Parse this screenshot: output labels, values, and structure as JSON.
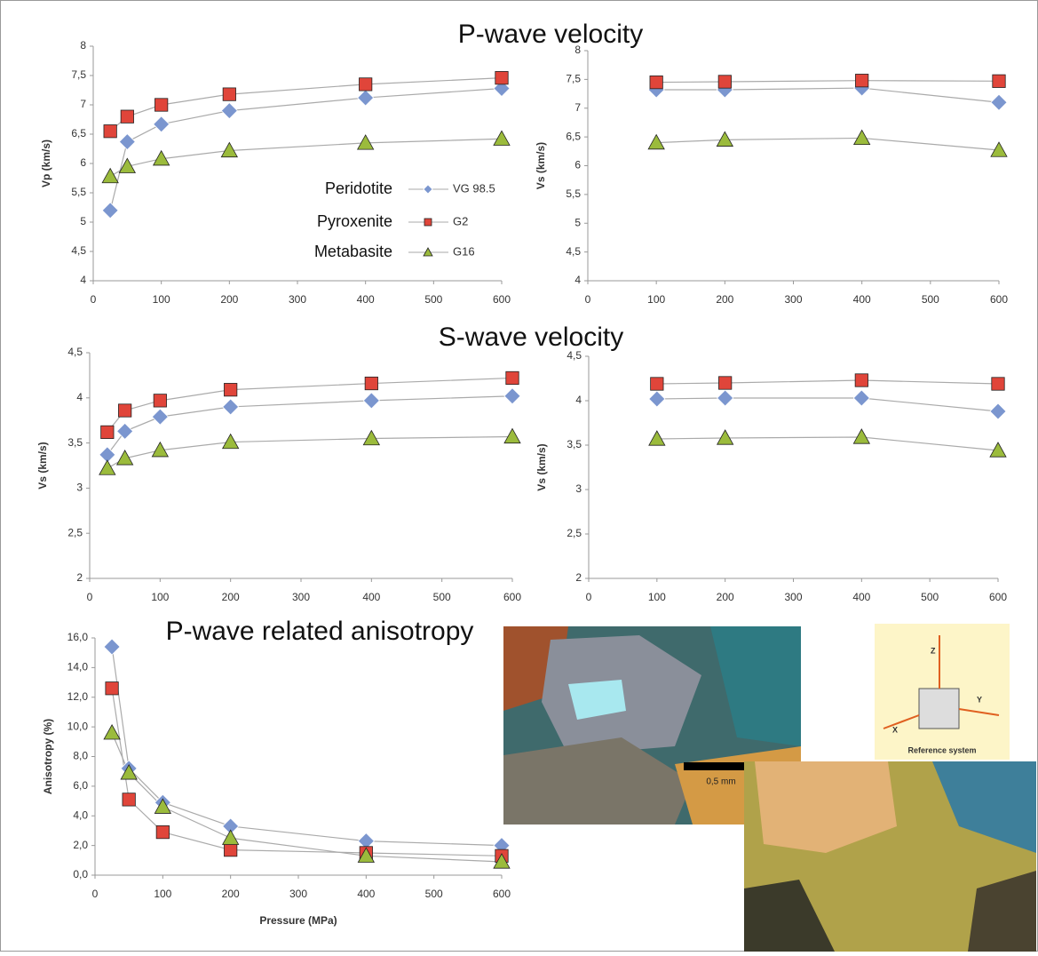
{
  "chart_data": [
    {
      "type": "line",
      "title": "P-wave velocity",
      "ylabel": "Vp (km/s)",
      "x": [
        25,
        50,
        100,
        200,
        400,
        600
      ],
      "xlim": [
        0,
        600
      ],
      "xticks": [
        0,
        100,
        200,
        300,
        400,
        500,
        600
      ],
      "ylim": [
        4,
        8
      ],
      "yticks": [
        4,
        {
          "value": 4.5,
          "label": "4,5"
        },
        5,
        {
          "value": 5.5,
          "label": "5,5"
        },
        6,
        {
          "value": 6.5,
          "label": "6,5"
        },
        7,
        {
          "value": 7.5,
          "label": "7,5"
        },
        8
      ],
      "legend": true,
      "rock_types": [
        "Peridotite",
        "Pyroxenite",
        "Metabasite"
      ],
      "series": [
        {
          "name": "VG 98.5",
          "color": "#7b96cf",
          "marker": "diamond",
          "values": [
            5.2,
            6.37,
            6.67,
            6.9,
            7.12,
            7.28
          ]
        },
        {
          "name": "G2",
          "color": "#e0453a",
          "marker": "square",
          "values": [
            6.55,
            6.8,
            7.0,
            7.18,
            7.35,
            7.46
          ]
        },
        {
          "name": "G16",
          "color": "#9bbb3c",
          "marker": "triangle",
          "values": [
            5.78,
            5.95,
            6.08,
            6.22,
            6.35,
            6.42
          ]
        }
      ]
    },
    {
      "type": "line",
      "ylabel": "Vs (km/s)",
      "x": [
        100,
        200,
        400,
        600
      ],
      "xlim": [
        0,
        600
      ],
      "xticks": [
        0,
        100,
        200,
        300,
        400,
        500,
        600
      ],
      "ylim": [
        4,
        8
      ],
      "yticks": [
        4,
        {
          "value": 4.5,
          "label": "4,5"
        },
        5,
        {
          "value": 5.5,
          "label": "5,5"
        },
        6,
        {
          "value": 6.5,
          "label": "6,5"
        },
        7,
        {
          "value": 7.5,
          "label": "7,5"
        },
        8
      ],
      "series": [
        {
          "color": "#7b96cf",
          "marker": "diamond",
          "values": [
            7.32,
            7.32,
            7.35,
            7.1
          ]
        },
        {
          "color": "#e0453a",
          "marker": "square",
          "values": [
            7.45,
            7.46,
            7.48,
            7.47
          ]
        },
        {
          "color": "#9bbb3c",
          "marker": "triangle",
          "values": [
            6.4,
            6.45,
            6.48,
            6.27
          ]
        }
      ]
    },
    {
      "type": "line",
      "title": "S-wave velocity",
      "ylabel": "Vs (km/s)",
      "x": [
        25,
        50,
        100,
        200,
        400,
        600
      ],
      "xlim": [
        0,
        600
      ],
      "xticks": [
        0,
        100,
        200,
        300,
        400,
        500,
        600
      ],
      "ylim": [
        2,
        4.5
      ],
      "yticks": [
        2,
        {
          "value": 2.5,
          "label": "2,5"
        },
        3,
        {
          "value": 3.5,
          "label": "3,5"
        },
        4,
        {
          "value": 4.5,
          "label": "4,5"
        }
      ],
      "series": [
        {
          "color": "#7b96cf",
          "marker": "diamond",
          "values": [
            3.37,
            3.63,
            3.79,
            3.9,
            3.97,
            4.02
          ]
        },
        {
          "color": "#e0453a",
          "marker": "square",
          "values": [
            3.62,
            3.86,
            3.97,
            4.09,
            4.16,
            4.22
          ]
        },
        {
          "color": "#9bbb3c",
          "marker": "triangle",
          "values": [
            3.22,
            3.33,
            3.42,
            3.51,
            3.55,
            3.57
          ]
        }
      ]
    },
    {
      "type": "line",
      "ylabel": "Vs (km/s)",
      "x": [
        100,
        200,
        400,
        600
      ],
      "xlim": [
        0,
        600
      ],
      "xticks": [
        0,
        100,
        200,
        300,
        400,
        500,
        600
      ],
      "ylim": [
        2,
        4.5
      ],
      "yticks": [
        2,
        {
          "value": 2.5,
          "label": "2,5"
        },
        3,
        {
          "value": 3.5,
          "label": "3,5"
        },
        4,
        {
          "value": 4.5,
          "label": "4,5"
        }
      ],
      "series": [
        {
          "color": "#7b96cf",
          "marker": "diamond",
          "values": [
            4.02,
            4.03,
            4.03,
            3.88
          ]
        },
        {
          "color": "#e0453a",
          "marker": "square",
          "values": [
            4.19,
            4.2,
            4.23,
            4.19
          ]
        },
        {
          "color": "#9bbb3c",
          "marker": "triangle",
          "values": [
            3.57,
            3.58,
            3.59,
            3.44
          ]
        }
      ]
    },
    {
      "type": "line",
      "title": "P-wave related anisotropy",
      "ylabel": "Anisotropy (%)",
      "xlabel": "Pressure (MPa)",
      "x": [
        25,
        50,
        100,
        200,
        400,
        600
      ],
      "xlim": [
        0,
        600
      ],
      "xticks": [
        0,
        100,
        200,
        300,
        400,
        500,
        600
      ],
      "ylim": [
        0,
        16
      ],
      "yticks": [
        {
          "value": 0,
          "label": "0,0"
        },
        {
          "value": 2,
          "label": "2,0"
        },
        {
          "value": 4,
          "label": "4,0"
        },
        {
          "value": 6,
          "label": "6,0"
        },
        {
          "value": 8,
          "label": "8,0"
        },
        {
          "value": 10,
          "label": "10,0"
        },
        {
          "value": 12,
          "label": "12,0"
        },
        {
          "value": 14,
          "label": "14,0"
        },
        {
          "value": 16,
          "label": "16,0"
        }
      ],
      "series": [
        {
          "color": "#7b96cf",
          "marker": "diamond",
          "values": [
            15.4,
            7.2,
            4.9,
            3.3,
            2.3,
            2.0
          ]
        },
        {
          "color": "#e0453a",
          "marker": "square",
          "values": [
            12.6,
            5.1,
            2.9,
            1.7,
            1.5,
            1.3
          ]
        },
        {
          "color": "#9bbb3c",
          "marker": "triangle",
          "values": [
            9.6,
            6.9,
            4.6,
            2.5,
            1.3,
            0.9
          ]
        }
      ]
    }
  ],
  "figure": {
    "scale_bar": "0,5 mm",
    "reference_label": "Reference system",
    "axis_z": "Z",
    "axis_y": "Y",
    "axis_x": "X"
  }
}
